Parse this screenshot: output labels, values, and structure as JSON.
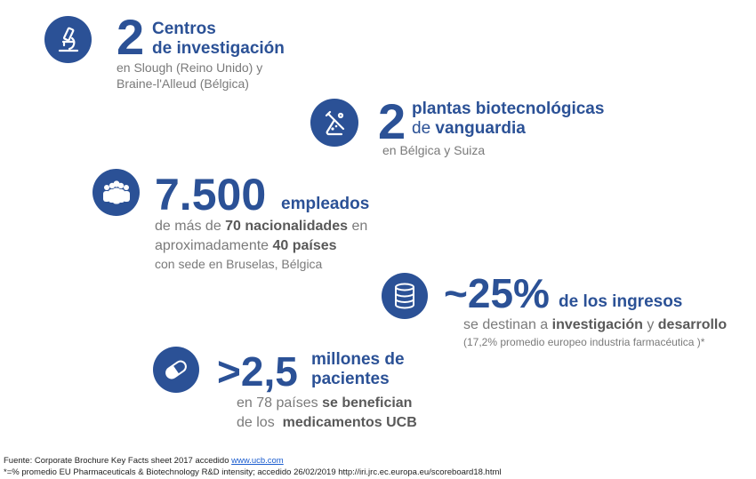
{
  "colors": {
    "accent": "#2b5196",
    "muted": "#7a7a7a",
    "muted_bold": "#595959"
  },
  "stats": {
    "research": {
      "icon": "microscope-icon",
      "number": "2",
      "label_line1": "Centros",
      "label_line2": "de investigación",
      "sub_line1": "en Slough (Reino Unido) y",
      "sub_line2": "Braine-l'Alleud (Bélgica)"
    },
    "plants": {
      "icon": "flask-icon",
      "number": "2",
      "label_line1": "plantas biotecnológicas",
      "label_line2_prefix": "de ",
      "label_line2_bold": "vanguardia",
      "sub_line1": "en Bélgica y Suiza"
    },
    "employees": {
      "icon": "people-group-icon",
      "number": "7.500",
      "label": "empleados",
      "sub_l1_a": "de más de ",
      "sub_l1_b": "70 nacionalidades",
      "sub_l1_c": " en",
      "sub_l2_a": "aproximadamente ",
      "sub_l2_b": "40 países",
      "sub_l3": "con sede en Bruselas, Bélgica"
    },
    "revenue": {
      "icon": "database-icon",
      "number": "~25%",
      "label": "de los ingresos",
      "sub_l1_a": "se destinan a ",
      "sub_l1_b": "investigación",
      "sub_l1_c": " y ",
      "sub_l1_d": "desarrollo",
      "sub_l2": "(17,2% promedio europeo industria farmacéutica )*"
    },
    "patients": {
      "icon": "pill-icon",
      "number": ">2,5",
      "label_line1": "millones de",
      "label_line2": "pacientes",
      "sub_l1_a": "en 78 países ",
      "sub_l1_b": "se benefician",
      "sub_l2_a": "de los  ",
      "sub_l2_b": "medicamentos UCB"
    }
  },
  "footer": {
    "line1_prefix": "Fuente: Corporate Brochure Key Facts sheet 2017 accedido ",
    "line1_link": "www.ucb.com",
    "line2": "*=% promedio EU Pharmaceuticals & Biotechnology R&D intensity; accedido 26/02/2019 http://iri.jrc.ec.europa.eu/scoreboard18.html"
  }
}
